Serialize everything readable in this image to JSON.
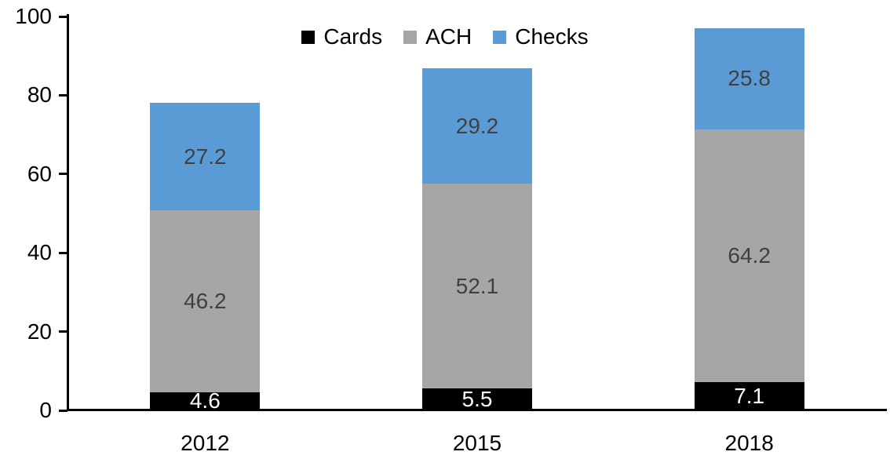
{
  "chart_data": {
    "type": "bar",
    "stacked": true,
    "title": "",
    "xlabel": "",
    "ylabel": "",
    "categories": [
      "2012",
      "2015",
      "2018"
    ],
    "series": [
      {
        "name": "Cards",
        "color": "#000000",
        "label_color": "#ffffff",
        "values": [
          4.6,
          5.5,
          7.1
        ]
      },
      {
        "name": "ACH",
        "color": "#a6a6a6",
        "label_color": "#404040",
        "values": [
          46.2,
          52.1,
          64.2
        ]
      },
      {
        "name": "Checks",
        "color": "#5b9bd5",
        "label_color": "#404040",
        "values": [
          27.2,
          29.2,
          25.8
        ]
      }
    ],
    "ylim": [
      0,
      100
    ],
    "yticks": [
      0,
      20,
      40,
      60,
      80,
      100
    ],
    "grid": false,
    "legend_position": "top-center",
    "axis_color": "#000000"
  }
}
